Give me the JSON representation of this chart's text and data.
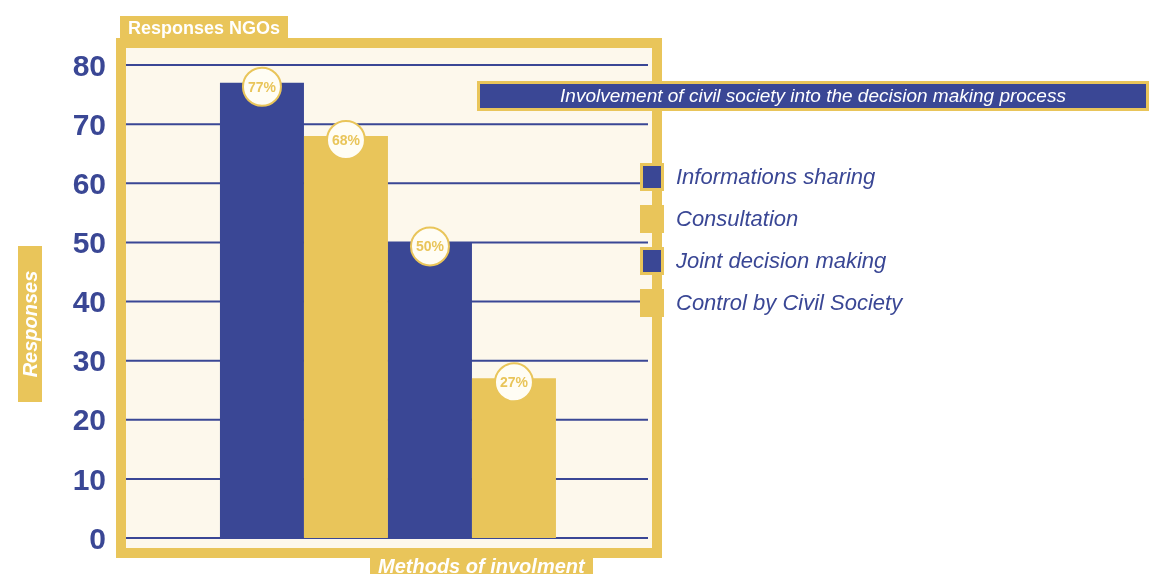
{
  "chart_data": {
    "type": "bar",
    "title": "Involvement of civil society into the decision making process",
    "subtitle": "Responses NGOs",
    "xlabel": "Methods of involment",
    "ylabel": "Responses",
    "categories": [
      null
    ],
    "series": [
      {
        "name": "Informations sharing",
        "color": "#3a4795",
        "values": [
          77
        ],
        "value_labels": [
          "77%"
        ]
      },
      {
        "name": "Consultation",
        "color": "#e9c55a",
        "values": [
          68
        ],
        "value_labels": [
          "68%"
        ]
      },
      {
        "name": "Joint decision making",
        "color": "#3a4795",
        "values": [
          50
        ],
        "value_labels": [
          "50%"
        ]
      },
      {
        "name": "Control by Civil Society",
        "color": "#e9c55a",
        "values": [
          27
        ],
        "value_labels": [
          "27%"
        ]
      }
    ],
    "ylim": [
      0,
      80
    ],
    "yticks": [
      0,
      10,
      20,
      30,
      40,
      50,
      60,
      70,
      80
    ],
    "grid": "y",
    "legend": "right"
  }
}
